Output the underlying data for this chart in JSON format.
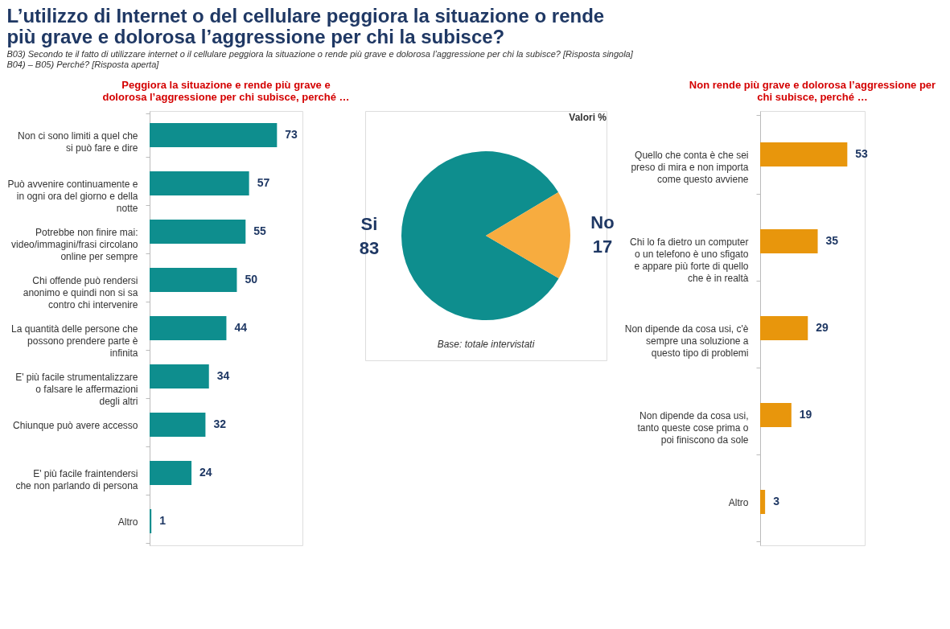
{
  "chart_data": [
    {
      "type": "pie",
      "title": "L’utilizzo di Internet o del cellulare peggiora la situazione o rende più grave e dolorosa l’aggressione per chi la subisce?",
      "subtitle": "B03) Secondo te il fatto di utilizzare internet o il cellulare peggiora la situazione o rende più grave e dolorosa l’aggressione per chi la subisce? [Risposta singola]",
      "annotations": [
        "B04) – B05) Perché? [Risposta aperta]",
        "Base: totale intervistati",
        "Valori %"
      ],
      "categories": [
        "Si",
        "No"
      ],
      "values": [
        83,
        17
      ],
      "colors": [
        "#0e8e8e",
        "#f7ac3f"
      ],
      "data_labels": true
    },
    {
      "type": "bar",
      "orientation": "horizontal",
      "title": "Peggiora la situazione e rende più grave e dolorosa l’aggressione per chi subisce, perché …",
      "categories": [
        "Non ci sono limiti a quel che si può fare e dire",
        "Può avvenire continuamente e in ogni ora del giorno e della notte",
        "Potrebbe non finire mai: video/immagini/frasi circolano online per sempre",
        "Chi offende può rendersi anonimo e quindi non si sa contro chi intervenire",
        "La quantità delle persone che possono prendere parte è infinita",
        "E' più facile strumentalizzare o falsare le affermazioni degli altri",
        "Chiunque può avere accesso",
        "E' più facile fraintendersi che non parlando di persona",
        "Altro"
      ],
      "values": [
        73,
        57,
        55,
        50,
        44,
        34,
        32,
        24,
        1
      ],
      "color": "#0e8e8e",
      "data_labels": true
    },
    {
      "type": "bar",
      "orientation": "horizontal",
      "title": "Non rende più grave e dolorosa l’aggressione per chi subisce, perché …",
      "categories": [
        "Quello che conta è che sei preso di mira e non importa come questo avviene",
        "Chi lo fa dietro un computer o un telefono è uno sfigato e appare più forte di quello che è in realtà",
        "Non dipende da cosa usi, c'è sempre una soluzione a questo tipo di problemi",
        "Non dipende da cosa usi, tanto queste cose prima o poi finiscono da sole",
        "Altro"
      ],
      "values": [
        53,
        35,
        29,
        19,
        3
      ],
      "color": "#e8960c",
      "data_labels": true
    }
  ]
}
